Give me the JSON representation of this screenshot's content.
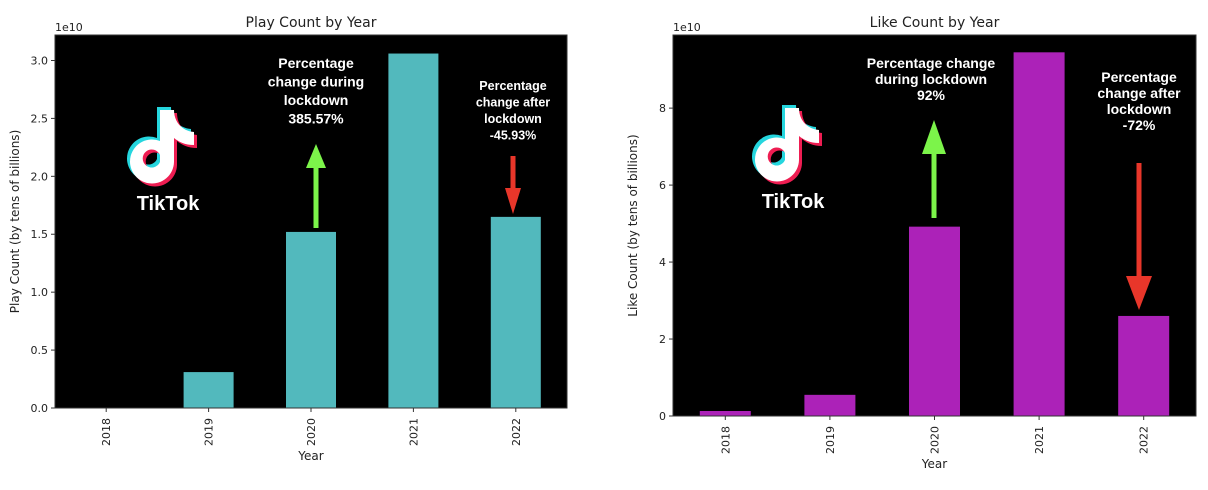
{
  "chart_data": [
    {
      "type": "bar",
      "title": "Play Count by Year",
      "xlabel": "Year",
      "ylabel": "Play Count (by tens of billions)",
      "offset_label": "1e10",
      "categories": [
        "2018",
        "2019",
        "2020",
        "2021",
        "2022"
      ],
      "values": [
        0.0,
        0.31,
        1.52,
        3.06,
        1.65
      ],
      "ylim": [
        0,
        3.22
      ],
      "yticks": [
        "0.0",
        "0.5",
        "1.0",
        "1.5",
        "2.0",
        "2.5",
        "3.0"
      ],
      "ytick_values": [
        0,
        0.5,
        1.0,
        1.5,
        2.0,
        2.5,
        3.0
      ],
      "bar_color": "#52b9bd",
      "background": "#000000",
      "annotations": [
        {
          "lines": [
            "Percentage",
            "change during",
            "lockdown",
            "385.57%"
          ],
          "arrow": "up",
          "arrow_color": "#7cf44a",
          "category": "2020"
        },
        {
          "lines": [
            "Percentage",
            "change after",
            "lockdown",
            "-45.93%"
          ],
          "arrow": "down",
          "arrow_color": "#e8362a",
          "category": "2022"
        }
      ],
      "logo_text": "TikTok"
    },
    {
      "type": "bar",
      "title": "Like Count by Year",
      "xlabel": "Year",
      "ylabel": "Like Count (by tens of billions)",
      "offset_label": "1e10",
      "categories": [
        "2018",
        "2019",
        "2020",
        "2021",
        "2022"
      ],
      "values": [
        0.13,
        0.55,
        4.92,
        9.45,
        2.6
      ],
      "ylim": [
        0,
        9.9
      ],
      "yticks": [
        "0",
        "2",
        "4",
        "6",
        "8"
      ],
      "ytick_values": [
        0,
        2,
        4,
        6,
        8
      ],
      "bar_color": "#ac22b8",
      "background": "#000000",
      "annotations": [
        {
          "lines": [
            "Percentage change",
            "during lockdown",
            "92%"
          ],
          "arrow": "up",
          "arrow_color": "#7cf44a",
          "category": "2020"
        },
        {
          "lines": [
            "Percentage",
            "change after",
            "lockdown",
            "-72%"
          ],
          "arrow": "down",
          "arrow_color": "#e8362a",
          "category": "2022"
        }
      ],
      "logo_text": "TikTok"
    }
  ]
}
